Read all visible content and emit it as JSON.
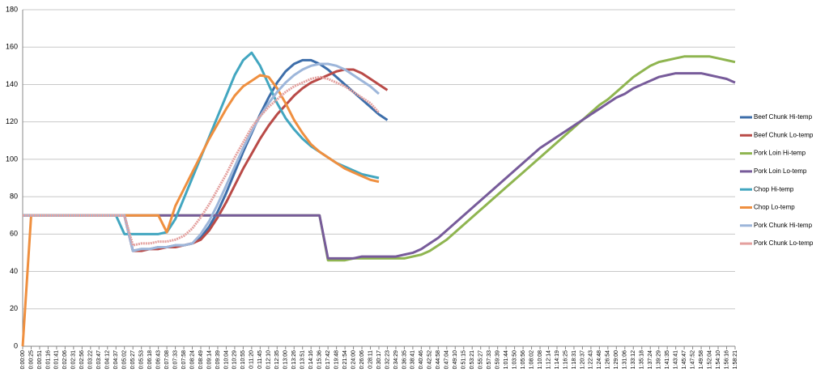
{
  "chart_data": {
    "type": "line",
    "categories": [
      "0:00:00",
      "0:00:25",
      "0:00:51",
      "0:01:16",
      "0:01:41",
      "0:02:06",
      "0:02:31",
      "0:02:56",
      "0:03:22",
      "0:03:47",
      "0:04:12",
      "0:04:37",
      "0:05:02",
      "0:05:27",
      "0:05:53",
      "0:06:18",
      "0:06:43",
      "0:07:08",
      "0:07:33",
      "0:07:58",
      "0:08:24",
      "0:08:49",
      "0:09:14",
      "0:09:39",
      "0:10:04",
      "0:10:29",
      "0:10:55",
      "0:11:20",
      "0:11:45",
      "0:12:10",
      "0:12:35",
      "0:13:00",
      "0:13:26",
      "0:13:51",
      "0:14:16",
      "0:15:36",
      "0:17:42",
      "0:19:48",
      "0:21:54",
      "0:24:00",
      "0:26:06",
      "0:28:11",
      "0:30:17",
      "0:32:23",
      "0:34:29",
      "0:36:35",
      "0:38:41",
      "0:40:46",
      "0:42:52",
      "0:44:58",
      "0:47:04",
      "0:49:10",
      "0:51:15",
      "0:53:21",
      "0:55:27",
      "0:57:33",
      "0:59:39",
      "1:01:44",
      "1:03:50",
      "1:05:56",
      "1:08:02",
      "1:10:08",
      "1:12:14",
      "1:14:19",
      "1:16:25",
      "1:18:31",
      "1:20:37",
      "1:22:43",
      "1:24:48",
      "1:26:54",
      "1:29:00",
      "1:31:06",
      "1:33:12",
      "1:35:18",
      "1:37:24",
      "1:39:29",
      "1:41:35",
      "1:43:41",
      "1:45:47",
      "1:47:52",
      "1:49:58",
      "1:52:04",
      "1:54:10",
      "1:56:16",
      "1:58:21"
    ],
    "series": [
      {
        "name": "Beef Chunk Hi-temp",
        "color": "#3d6eaa",
        "values": [
          70,
          70,
          70,
          70,
          70,
          70,
          70,
          70,
          70,
          70,
          70,
          70,
          70,
          51,
          52,
          52,
          53,
          53,
          54,
          54,
          55,
          58,
          64,
          72,
          82,
          93,
          104,
          114,
          124,
          133,
          141,
          147,
          151,
          153,
          153,
          151,
          148,
          144,
          140,
          136,
          132,
          128,
          124,
          121,
          null,
          null,
          null,
          null,
          null,
          null,
          null,
          null,
          null,
          null,
          null,
          null,
          null,
          null,
          null,
          null,
          null,
          null,
          null,
          null,
          null,
          null,
          null,
          null,
          null,
          null,
          null,
          null,
          null,
          null,
          null,
          null,
          null,
          null,
          null,
          null,
          null,
          null,
          null,
          null,
          null
        ]
      },
      {
        "name": "Beef Chunk Lo-temp",
        "color": "#b94a47",
        "values": [
          70,
          70,
          70,
          70,
          70,
          70,
          70,
          70,
          70,
          70,
          70,
          70,
          70,
          51,
          51,
          52,
          52,
          53,
          53,
          54,
          55,
          57,
          62,
          69,
          77,
          86,
          95,
          103,
          111,
          118,
          124,
          129,
          134,
          138,
          141,
          143,
          145,
          147,
          148,
          148,
          146,
          143,
          140,
          137,
          null,
          null,
          null,
          null,
          null,
          null,
          null,
          null,
          null,
          null,
          null,
          null,
          null,
          null,
          null,
          null,
          null,
          null,
          null,
          null,
          null,
          null,
          null,
          null,
          null,
          null,
          null,
          null,
          null,
          null,
          null,
          null,
          null,
          null,
          null,
          null,
          null,
          null,
          null,
          null,
          null
        ]
      },
      {
        "name": "Pork Loin Hi-temp",
        "color": "#8fb550",
        "values": [
          70,
          70,
          70,
          70,
          70,
          70,
          70,
          70,
          70,
          70,
          70,
          70,
          70,
          70,
          70,
          70,
          70,
          70,
          70,
          70,
          70,
          70,
          70,
          70,
          70,
          70,
          70,
          70,
          70,
          70,
          70,
          70,
          70,
          70,
          70,
          70,
          46,
          46,
          46,
          47,
          47,
          47,
          47,
          47,
          47,
          47,
          48,
          49,
          51,
          54,
          57,
          61,
          65,
          69,
          73,
          77,
          81,
          85,
          89,
          93,
          97,
          101,
          105,
          109,
          113,
          117,
          121,
          125,
          129,
          132,
          136,
          140,
          144,
          147,
          150,
          152,
          153,
          154,
          155,
          155,
          155,
          155,
          154,
          153,
          152
        ]
      },
      {
        "name": "Pork Loin Lo-temp",
        "color": "#775b9a",
        "values": [
          70,
          70,
          70,
          70,
          70,
          70,
          70,
          70,
          70,
          70,
          70,
          70,
          70,
          70,
          70,
          70,
          70,
          70,
          70,
          70,
          70,
          70,
          70,
          70,
          70,
          70,
          70,
          70,
          70,
          70,
          70,
          70,
          70,
          70,
          70,
          70,
          47,
          47,
          47,
          47,
          48,
          48,
          48,
          48,
          48,
          49,
          50,
          52,
          55,
          58,
          62,
          66,
          70,
          74,
          78,
          82,
          86,
          90,
          94,
          98,
          102,
          106,
          109,
          112,
          115,
          118,
          121,
          124,
          127,
          130,
          133,
          135,
          138,
          140,
          142,
          144,
          145,
          146,
          146,
          146,
          146,
          145,
          144,
          143,
          141
        ]
      },
      {
        "name": "Chop Hi-temp",
        "color": "#42a6c0",
        "values": [
          70,
          70,
          70,
          70,
          70,
          70,
          70,
          70,
          70,
          70,
          70,
          70,
          60,
          60,
          60,
          60,
          60,
          61,
          68,
          79,
          90,
          101,
          112,
          123,
          134,
          145,
          153,
          157,
          150,
          140,
          130,
          122,
          116,
          111,
          107,
          104,
          101,
          98,
          96,
          94,
          92,
          91,
          90,
          null,
          null,
          null,
          null,
          null,
          null,
          null,
          null,
          null,
          null,
          null,
          null,
          null,
          null,
          null,
          null,
          null,
          null,
          null,
          null,
          null,
          null,
          null,
          null,
          null,
          null,
          null,
          null,
          null,
          null,
          null,
          null,
          null,
          null,
          null,
          null,
          null,
          null,
          null,
          null,
          null,
          null
        ]
      },
      {
        "name": "Chop Lo-temp",
        "color": "#ef8f3f",
        "values": [
          0,
          70,
          70,
          70,
          70,
          70,
          70,
          70,
          70,
          70,
          70,
          70,
          70,
          70,
          70,
          70,
          70,
          61,
          75,
          84,
          93,
          102,
          111,
          119,
          127,
          134,
          139,
          142,
          145,
          144,
          138,
          130,
          121,
          114,
          108,
          104,
          101,
          98,
          95,
          93,
          91,
          89,
          88,
          null,
          null,
          null,
          null,
          null,
          null,
          null,
          null,
          null,
          null,
          null,
          null,
          null,
          null,
          null,
          null,
          null,
          null,
          null,
          null,
          null,
          null,
          null,
          null,
          null,
          null,
          null,
          null,
          null,
          null,
          null,
          null,
          null,
          null,
          null,
          null,
          null,
          null,
          null,
          null,
          null,
          null
        ]
      },
      {
        "name": "Pork Chunk Hi-temp",
        "color": "#9db6da",
        "values": [
          70,
          70,
          70,
          70,
          70,
          70,
          70,
          70,
          70,
          70,
          70,
          70,
          70,
          51,
          52,
          52,
          53,
          53,
          54,
          54,
          55,
          60,
          67,
          76,
          86,
          96,
          106,
          115,
          123,
          130,
          136,
          141,
          145,
          148,
          150,
          151,
          151,
          150,
          148,
          145,
          142,
          139,
          135,
          null,
          null,
          null,
          null,
          null,
          null,
          null,
          null,
          null,
          null,
          null,
          null,
          null,
          null,
          null,
          null,
          null,
          null,
          null,
          null,
          null,
          null,
          null,
          null,
          null,
          null,
          null,
          null,
          null,
          null,
          null,
          null,
          null,
          null,
          null,
          null,
          null,
          null,
          null,
          null,
          null,
          null
        ]
      },
      {
        "name": "Pork Chunk Lo-temp",
        "color": "#e4a09e",
        "values": [
          70,
          70,
          70,
          70,
          70,
          70,
          70,
          70,
          70,
          70,
          70,
          70,
          70,
          54,
          55,
          55,
          56,
          56,
          57,
          59,
          63,
          69,
          76,
          84,
          92,
          101,
          109,
          117,
          123,
          128,
          132,
          136,
          139,
          141,
          143,
          144,
          143,
          141,
          139,
          136,
          133,
          130,
          125,
          null,
          null,
          null,
          null,
          null,
          null,
          null,
          null,
          null,
          null,
          null,
          null,
          null,
          null,
          null,
          null,
          null,
          null,
          null,
          null,
          null,
          null,
          null,
          null,
          null,
          null,
          null,
          null,
          null,
          null,
          null,
          null,
          null,
          null,
          null,
          null,
          null,
          null,
          null,
          null,
          null,
          null
        ]
      }
    ],
    "ylim": [
      0,
      180
    ],
    "yticks": [
      0,
      20,
      40,
      60,
      80,
      100,
      120,
      140,
      160,
      180
    ],
    "grid": true,
    "legend": "right"
  }
}
